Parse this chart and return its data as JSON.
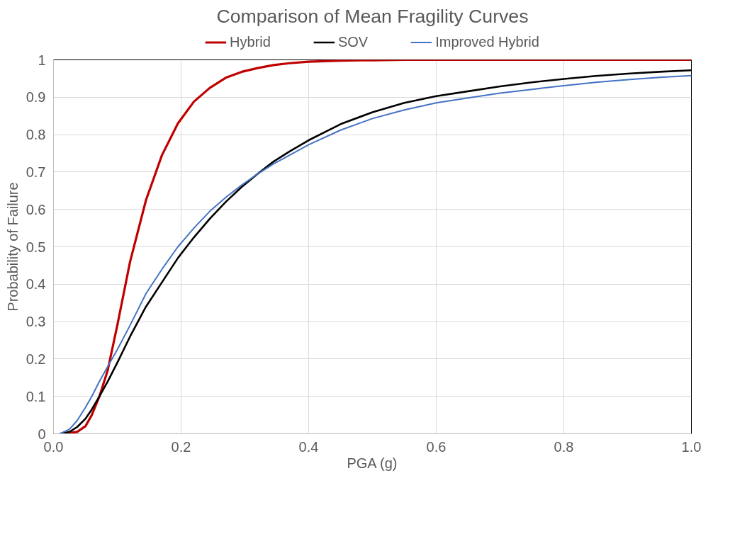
{
  "chart_data": {
    "type": "line",
    "title": "Comparison of Mean Fragility Curves",
    "xlabel": "PGA (g)",
    "ylabel": "Probability of Failure",
    "xlim": [
      0,
      1
    ],
    "ylim": [
      0,
      1
    ],
    "xticks": [
      {
        "value": 0,
        "label": "0.0"
      },
      0.2,
      0.4,
      0.6,
      0.8,
      {
        "value": 1,
        "label": "1.0"
      }
    ],
    "yticks": [
      0,
      0.1,
      0.2,
      0.3,
      0.4,
      0.5,
      0.6,
      0.7,
      0.8,
      0.9,
      1
    ],
    "grid": true,
    "legend": "top",
    "marker": "none",
    "line_style": "solid",
    "series": [
      {
        "name": "Hybrid",
        "color": "#c00000",
        "x": [
          0.01,
          0.025,
          0.037,
          0.05,
          0.06,
          0.072,
          0.085,
          0.1,
          0.12,
          0.145,
          0.17,
          0.195,
          0.22,
          0.245,
          0.27,
          0.295,
          0.32,
          0.345,
          0.37,
          0.4,
          0.45,
          0.5,
          0.55,
          1.0
        ],
        "values": [
          0,
          0.002,
          0.005,
          0.02,
          0.05,
          0.1,
          0.17,
          0.29,
          0.46,
          0.625,
          0.745,
          0.83,
          0.888,
          0.925,
          0.952,
          0.968,
          0.978,
          0.986,
          0.991,
          0.995,
          0.998,
          0.999,
          1.0,
          1.0
        ]
      },
      {
        "name": "SOV",
        "color": "#000000",
        "x": [
          0.01,
          0.025,
          0.037,
          0.05,
          0.06,
          0.072,
          0.085,
          0.1,
          0.12,
          0.145,
          0.17,
          0.195,
          0.22,
          0.245,
          0.27,
          0.295,
          0.32,
          0.345,
          0.37,
          0.4,
          0.45,
          0.5,
          0.55,
          0.6,
          0.65,
          0.7,
          0.75,
          0.8,
          0.85,
          0.9,
          0.95,
          1.0
        ],
        "values": [
          0,
          0.005,
          0.018,
          0.04,
          0.065,
          0.1,
          0.14,
          0.19,
          0.26,
          0.34,
          0.405,
          0.47,
          0.525,
          0.575,
          0.62,
          0.66,
          0.695,
          0.728,
          0.755,
          0.785,
          0.828,
          0.86,
          0.885,
          0.903,
          0.916,
          0.929,
          0.94,
          0.949,
          0.957,
          0.963,
          0.968,
          0.972
        ]
      },
      {
        "name": "Improved Hybrid",
        "color": "#4472c4",
        "x": [
          0.01,
          0.025,
          0.037,
          0.05,
          0.06,
          0.072,
          0.085,
          0.1,
          0.12,
          0.145,
          0.17,
          0.195,
          0.22,
          0.245,
          0.27,
          0.295,
          0.32,
          0.345,
          0.37,
          0.4,
          0.45,
          0.5,
          0.55,
          0.6,
          0.65,
          0.7,
          0.75,
          0.8,
          0.85,
          0.9,
          0.95,
          1.0
        ],
        "values": [
          0,
          0.012,
          0.035,
          0.07,
          0.1,
          0.14,
          0.18,
          0.225,
          0.29,
          0.375,
          0.44,
          0.5,
          0.55,
          0.595,
          0.632,
          0.665,
          0.695,
          0.722,
          0.745,
          0.773,
          0.812,
          0.843,
          0.866,
          0.885,
          0.898,
          0.911,
          0.921,
          0.931,
          0.94,
          0.947,
          0.953,
          0.958
        ]
      }
    ]
  }
}
